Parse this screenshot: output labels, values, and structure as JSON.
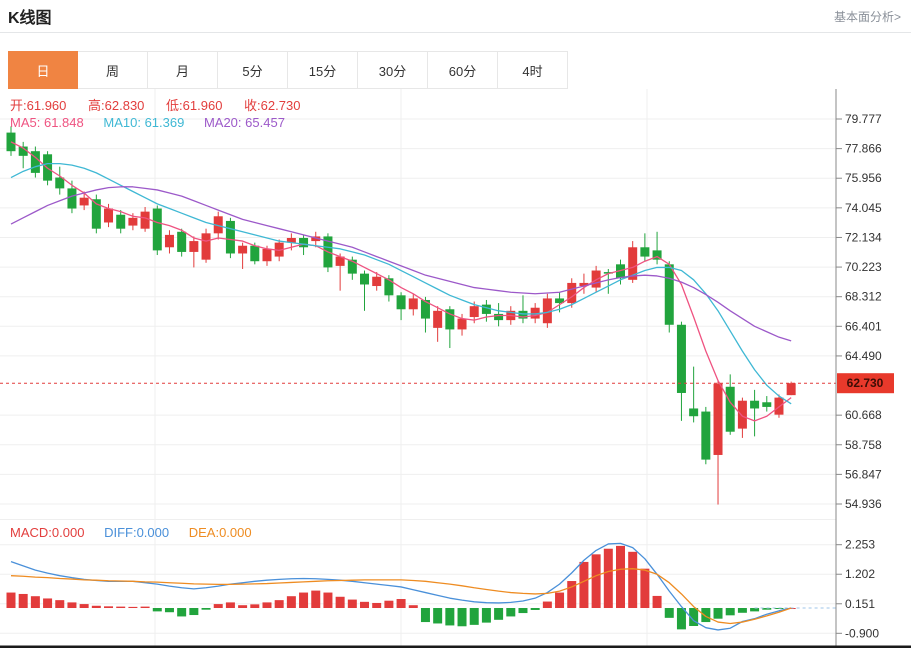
{
  "header": {
    "title": "K线图",
    "link": "基本面分析>"
  },
  "tabs": {
    "items": [
      "日",
      "周",
      "月",
      "5分",
      "15分",
      "30分",
      "60分",
      "4时"
    ],
    "active_index": 0
  },
  "ohlc": {
    "open_label": "开:",
    "open": "61.960",
    "high_label": "高:",
    "high": "62.830",
    "low_label": "低:",
    "low": "61.960",
    "close_label": "收:",
    "close": "62.730"
  },
  "ma_header": {
    "ma5_label": "MA5:",
    "ma5": "61.848",
    "ma10_label": "MA10:",
    "ma10": "61.369",
    "ma20_label": "MA20:",
    "ma20": "65.457"
  },
  "macd_header": {
    "macd_label": "MACD:",
    "macd": "0.000",
    "diff_label": "DIFF:",
    "diff": "0.000",
    "dea_label": "DEA:",
    "dea": "0.000"
  },
  "price_tag": "62.730",
  "colors": {
    "accent_orange": "#f08442",
    "up_red": "#e23b3b",
    "down_green": "#21a43d",
    "ma5_pink": "#ef5381",
    "ma10_cyan": "#3fb8d4",
    "ma20_purple": "#9c59c9",
    "diff_blue": "#4a90d9",
    "dea_orange": "#ee8c22",
    "grid": "#efefef",
    "axis": "#888888",
    "label_text": "#333333",
    "price_line": "#e23b3b",
    "price_tag_bg": "#e8392b",
    "price_tag_text": "#3d0d05",
    "zero_dash": "#9fc6e8"
  },
  "chart_data": [
    {
      "type": "candlestick",
      "title": "K线图 日线",
      "legend": [
        "MA5",
        "MA10",
        "MA20"
      ],
      "ylim": [
        54.936,
        79.777
      ],
      "y_ticks": [
        79.777,
        77.866,
        75.956,
        74.045,
        72.134,
        70.223,
        68.312,
        66.401,
        64.49,
        60.668,
        58.758,
        56.847,
        54.936
      ],
      "current_price": 62.73,
      "grid": true,
      "x_grid": [
        155,
        401,
        647
      ],
      "candles_ohlc": [
        [
          78.9,
          79.3,
          77.4,
          77.7
        ],
        [
          78.0,
          78.3,
          76.6,
          77.4
        ],
        [
          77.7,
          78.0,
          76.0,
          76.3
        ],
        [
          77.5,
          77.7,
          75.5,
          75.8
        ],
        [
          76.0,
          76.7,
          74.9,
          75.3
        ],
        [
          75.3,
          75.8,
          73.7,
          74.0
        ],
        [
          74.2,
          75.1,
          73.9,
          74.7
        ],
        [
          74.6,
          74.9,
          72.4,
          72.7
        ],
        [
          73.1,
          74.3,
          72.8,
          74.0
        ],
        [
          73.6,
          73.9,
          72.4,
          72.7
        ],
        [
          72.9,
          73.7,
          72.6,
          73.4
        ],
        [
          72.7,
          74.1,
          72.5,
          73.8
        ],
        [
          74.0,
          74.2,
          71.0,
          71.3
        ],
        [
          71.5,
          72.6,
          71.1,
          72.3
        ],
        [
          72.5,
          72.7,
          70.9,
          71.2
        ],
        [
          71.2,
          72.2,
          70.2,
          71.9
        ],
        [
          70.7,
          72.7,
          70.5,
          72.4
        ],
        [
          72.4,
          73.8,
          72.0,
          73.5
        ],
        [
          73.2,
          73.4,
          70.8,
          71.1
        ],
        [
          71.1,
          71.8,
          70.1,
          71.6
        ],
        [
          71.6,
          71.8,
          70.4,
          70.6
        ],
        [
          70.6,
          71.6,
          70.3,
          71.4
        ],
        [
          70.9,
          72.0,
          70.6,
          71.8
        ],
        [
          71.8,
          72.4,
          71.3,
          72.1
        ],
        [
          72.1,
          72.3,
          71.0,
          71.5
        ],
        [
          71.9,
          72.5,
          71.5,
          72.2
        ],
        [
          72.2,
          72.4,
          69.9,
          70.2
        ],
        [
          70.3,
          71.1,
          68.7,
          70.9
        ],
        [
          70.7,
          70.9,
          69.4,
          69.8
        ],
        [
          69.8,
          70.0,
          67.4,
          69.1
        ],
        [
          69.0,
          69.9,
          68.7,
          69.6
        ],
        [
          69.5,
          69.7,
          68.0,
          68.4
        ],
        [
          68.4,
          68.6,
          66.8,
          67.5
        ],
        [
          67.5,
          68.5,
          67.1,
          68.2
        ],
        [
          68.1,
          68.3,
          66.0,
          66.9
        ],
        [
          66.3,
          67.7,
          65.4,
          67.4
        ],
        [
          67.5,
          67.7,
          65.0,
          66.2
        ],
        [
          66.2,
          67.2,
          65.8,
          66.9
        ],
        [
          67.0,
          68.0,
          66.6,
          67.7
        ],
        [
          67.8,
          68.1,
          66.7,
          67.2
        ],
        [
          67.2,
          67.9,
          66.4,
          66.8
        ],
        [
          66.8,
          67.7,
          66.5,
          67.4
        ],
        [
          67.4,
          68.4,
          66.6,
          66.9
        ],
        [
          66.9,
          67.9,
          66.6,
          67.6
        ],
        [
          66.6,
          68.5,
          66.3,
          68.2
        ],
        [
          68.2,
          68.6,
          67.3,
          67.9
        ],
        [
          67.9,
          69.5,
          67.6,
          69.2
        ],
        [
          69.0,
          69.8,
          68.5,
          69.2
        ],
        [
          68.9,
          70.3,
          68.6,
          70.0
        ],
        [
          69.9,
          70.1,
          68.5,
          69.8
        ],
        [
          70.4,
          70.7,
          69.1,
          69.5
        ],
        [
          69.4,
          71.9,
          69.2,
          71.5
        ],
        [
          71.5,
          72.4,
          70.6,
          70.9
        ],
        [
          71.3,
          72.5,
          70.4,
          70.7
        ],
        [
          70.4,
          70.6,
          66.0,
          66.5
        ],
        [
          66.5,
          66.7,
          60.3,
          62.1
        ],
        [
          61.1,
          63.8,
          60.2,
          60.6
        ],
        [
          60.9,
          61.2,
          57.5,
          57.8
        ],
        [
          58.1,
          62.9,
          54.9,
          62.7
        ],
        [
          62.5,
          63.3,
          59.4,
          59.6
        ],
        [
          59.8,
          61.8,
          59.2,
          61.6
        ],
        [
          61.6,
          62.3,
          59.3,
          61.1
        ],
        [
          61.5,
          61.9,
          60.9,
          61.2
        ],
        [
          60.7,
          62.0,
          60.5,
          61.8
        ],
        [
          61.96,
          62.83,
          61.96,
          62.73
        ]
      ],
      "series": [
        {
          "name": "MA5",
          "values": [
            78.3,
            77.9,
            77.3,
            76.6,
            76.1,
            75.5,
            75.0,
            74.3,
            74.0,
            73.8,
            73.5,
            73.4,
            73.1,
            72.9,
            72.6,
            72.1,
            71.9,
            72.1,
            72.0,
            71.9,
            71.6,
            71.4,
            71.3,
            71.5,
            71.7,
            71.6,
            71.2,
            70.9,
            70.6,
            70.2,
            69.8,
            69.4,
            68.9,
            68.5,
            68.0,
            67.6,
            67.2,
            66.9,
            66.8,
            67.0,
            67.1,
            67.1,
            67.0,
            67.1,
            67.3,
            67.8,
            68.3,
            68.9,
            69.4,
            69.8,
            70.0,
            70.2,
            70.6,
            70.9,
            70.4,
            69.1,
            67.0,
            64.8,
            62.9,
            61.5,
            60.6,
            60.3,
            60.6,
            61.2,
            61.8
          ]
        },
        {
          "name": "MA10",
          "values": [
            76.0,
            76.4,
            76.7,
            76.9,
            76.9,
            76.8,
            76.6,
            76.3,
            75.9,
            75.5,
            75.1,
            74.7,
            74.3,
            74.0,
            73.7,
            73.4,
            73.1,
            72.9,
            72.7,
            72.5,
            72.3,
            72.1,
            71.9,
            71.8,
            71.7,
            71.6,
            71.5,
            71.4,
            71.2,
            71.0,
            70.7,
            70.4,
            70.0,
            69.6,
            69.2,
            68.8,
            68.4,
            68.1,
            67.8,
            67.6,
            67.4,
            67.3,
            67.2,
            67.2,
            67.3,
            67.5,
            67.8,
            68.2,
            68.6,
            69.0,
            69.4,
            69.7,
            70.0,
            70.2,
            70.2,
            70.0,
            69.4,
            68.5,
            67.4,
            66.1,
            64.8,
            63.6,
            62.6,
            61.9,
            61.4
          ]
        },
        {
          "name": "MA20",
          "values": [
            73.0,
            73.4,
            73.8,
            74.2,
            74.5,
            74.8,
            75.0,
            75.2,
            75.35,
            75.4,
            75.4,
            75.3,
            75.2,
            75.0,
            74.8,
            74.5,
            74.2,
            73.9,
            73.6,
            73.3,
            73.1,
            72.9,
            72.7,
            72.5,
            72.3,
            72.1,
            71.9,
            71.7,
            71.5,
            71.2,
            70.9,
            70.6,
            70.3,
            70.0,
            69.7,
            69.5,
            69.3,
            69.1,
            68.9,
            68.8,
            68.7,
            68.6,
            68.55,
            68.5,
            68.55,
            68.6,
            68.8,
            69.0,
            69.2,
            69.4,
            69.55,
            69.65,
            69.7,
            69.65,
            69.5,
            69.25,
            68.9,
            68.45,
            67.95,
            67.4,
            66.9,
            66.4,
            66.05,
            65.7,
            65.46
          ]
        }
      ]
    },
    {
      "type": "bar",
      "title": "MACD",
      "ylim": [
        -0.9,
        2.253
      ],
      "y_ticks": [
        2.253,
        1.202,
        0.151,
        -0.9
      ],
      "grid": true,
      "x_grid": [
        155,
        401,
        647
      ],
      "histogram": [
        0.55,
        0.5,
        0.42,
        0.34,
        0.28,
        0.2,
        0.14,
        0.08,
        0.06,
        0.05,
        0.04,
        0.05,
        -0.12,
        -0.15,
        -0.3,
        -0.25,
        -0.06,
        0.14,
        0.2,
        0.1,
        0.13,
        0.2,
        0.28,
        0.42,
        0.55,
        0.62,
        0.55,
        0.4,
        0.3,
        0.22,
        0.18,
        0.26,
        0.32,
        0.1,
        -0.5,
        -0.55,
        -0.62,
        -0.65,
        -0.6,
        -0.52,
        -0.42,
        -0.3,
        -0.18,
        -0.07,
        0.23,
        0.55,
        0.96,
        1.64,
        1.91,
        2.11,
        2.21,
        2.0,
        1.4,
        0.43,
        -0.35,
        -0.76,
        -0.64,
        -0.5,
        -0.38,
        -0.26,
        -0.17,
        -0.12,
        -0.06,
        -0.02,
        0.0
      ],
      "series": [
        {
          "name": "DIFF",
          "values": [
            1.65,
            1.5,
            1.35,
            1.24,
            1.15,
            1.08,
            1.02,
            0.98,
            0.95,
            0.95,
            0.95,
            0.9,
            0.85,
            0.78,
            0.72,
            0.68,
            0.72,
            0.78,
            0.85,
            0.9,
            0.95,
            0.99,
            1.02,
            1.04,
            1.05,
            1.04,
            1.02,
            0.99,
            0.95,
            0.9,
            0.85,
            0.8,
            0.75,
            0.65,
            0.55,
            0.45,
            0.35,
            0.28,
            0.22,
            0.19,
            0.18,
            0.2,
            0.25,
            0.35,
            0.55,
            0.85,
            1.25,
            1.7,
            2.05,
            2.28,
            2.3,
            2.15,
            1.75,
            1.2,
            0.6,
            0.05,
            -0.45,
            -0.7,
            -0.78,
            -0.72,
            -0.48,
            -0.38,
            -0.22,
            -0.1,
            0.0
          ]
        },
        {
          "name": "DEA",
          "values": [
            1.15,
            1.13,
            1.1,
            1.08,
            1.05,
            1.03,
            1.0,
            0.99,
            0.97,
            0.96,
            0.95,
            0.93,
            0.92,
            0.9,
            0.88,
            0.86,
            0.85,
            0.84,
            0.84,
            0.85,
            0.86,
            0.87,
            0.89,
            0.91,
            0.93,
            0.95,
            0.97,
            0.98,
            0.99,
            1.0,
            1.0,
            1.0,
            1.0,
            0.98,
            0.95,
            0.9,
            0.85,
            0.79,
            0.72,
            0.66,
            0.6,
            0.55,
            0.52,
            0.5,
            0.52,
            0.6,
            0.75,
            0.95,
            1.15,
            1.3,
            1.38,
            1.4,
            1.35,
            1.2,
            0.9,
            0.5,
            0.05,
            -0.3,
            -0.5,
            -0.55,
            -0.5,
            -0.4,
            -0.28,
            -0.15,
            0.0
          ]
        }
      ]
    }
  ]
}
